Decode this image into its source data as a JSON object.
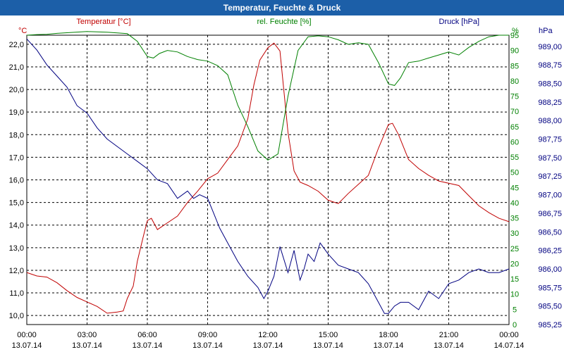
{
  "title": "Temperatur, Feuchte & Druck",
  "colors": {
    "title_bar": "#1c5fa8",
    "temperature": "#c00000",
    "humidity": "#008000",
    "pressure": "#000080"
  },
  "chart_data": {
    "type": "line",
    "title": "Temperatur, Feuchte & Druck",
    "grid": true,
    "legend": "top, above plot per axis",
    "x_ticks": [
      {
        "time": "00:00",
        "date": "13.07.14"
      },
      {
        "time": "03:00",
        "date": "13.07.14"
      },
      {
        "time": "06:00",
        "date": "13.07.14"
      },
      {
        "time": "09:00",
        "date": "13.07.14"
      },
      {
        "time": "12:00",
        "date": "13.07.14"
      },
      {
        "time": "15:00",
        "date": "13.07.14"
      },
      {
        "time": "18:00",
        "date": "13.07.14"
      },
      {
        "time": "21:00",
        "date": "13.07.14"
      },
      {
        "time": "00:00",
        "date": "14.07.14"
      }
    ],
    "x_range_hours": [
      0,
      24
    ],
    "axes": {
      "temperature": {
        "unit": "°C",
        "label": "Temperatur [°C]",
        "ylim": [
          9.6,
          22.4
        ],
        "ticks": [
          "10,0",
          "11,0",
          "12,0",
          "13,0",
          "14,0",
          "15,0",
          "16,0",
          "17,0",
          "18,0",
          "19,0",
          "20,0",
          "21,0",
          "22,0"
        ]
      },
      "humidity": {
        "unit": "%",
        "label": "rel. Feuchte [%]",
        "ylim": [
          0,
          95
        ],
        "ticks": [
          "0",
          "5",
          "10",
          "15",
          "20",
          "25",
          "30",
          "35",
          "40",
          "45",
          "50",
          "55",
          "60",
          "65",
          "70",
          "75",
          "80",
          "85",
          "90",
          "95"
        ]
      },
      "pressure": {
        "unit": "hPa",
        "label": "Druck [hPa]",
        "ylim": [
          985.25,
          989.15
        ],
        "ticks": [
          "985,25",
          "985,50",
          "985,75",
          "986,00",
          "986,25",
          "986,50",
          "986,75",
          "987,00",
          "987,25",
          "987,50",
          "987,75",
          "988,00",
          "988,25",
          "988,50",
          "988,75",
          "989,00"
        ]
      }
    },
    "series": [
      {
        "name": "Temperatur [°C]",
        "axis": "temperature",
        "x_hours": [
          0,
          0.5,
          1,
          1.5,
          2,
          2.5,
          3,
          3.5,
          4,
          4.5,
          4.8,
          5,
          5.3,
          5.5,
          5.8,
          6,
          6.2,
          6.5,
          7,
          7.5,
          8,
          8.5,
          9,
          9.5,
          10,
          10.5,
          11,
          11.3,
          11.6,
          12,
          12.3,
          12.6,
          13,
          13.3,
          13.6,
          14,
          14.5,
          15,
          15.5,
          16,
          16.5,
          17,
          17.5,
          18,
          18.2,
          18.5,
          19,
          19.5,
          20,
          20.5,
          21,
          21.5,
          22,
          22.5,
          23,
          23.5,
          24
        ],
        "values": [
          11.9,
          11.75,
          11.7,
          11.45,
          11.1,
          10.8,
          10.6,
          10.4,
          10.1,
          10.15,
          10.2,
          10.75,
          11.3,
          12.4,
          13.5,
          14.2,
          14.3,
          13.8,
          14.1,
          14.4,
          15.0,
          15.5,
          16.05,
          16.3,
          16.9,
          17.5,
          18.7,
          20.2,
          21.3,
          21.85,
          22.05,
          21.7,
          18.1,
          16.4,
          15.9,
          15.75,
          15.5,
          15.1,
          14.95,
          15.4,
          15.8,
          16.2,
          17.4,
          18.45,
          18.5,
          18.0,
          16.9,
          16.5,
          16.2,
          15.95,
          15.85,
          15.75,
          15.3,
          14.85,
          14.55,
          14.3,
          14.15
        ]
      },
      {
        "name": "rel. Feuchte [%]",
        "axis": "humidity",
        "x_hours": [
          0,
          0.5,
          1,
          1.5,
          2,
          3,
          4,
          5,
          5.5,
          6,
          6.3,
          6.6,
          7,
          7.5,
          8,
          8.5,
          9,
          9.5,
          10,
          10.5,
          11,
          11.5,
          12,
          12.5,
          13,
          13.5,
          14,
          14.5,
          15,
          15.5,
          16,
          16.5,
          17,
          17.5,
          18,
          18.3,
          18.6,
          19,
          19.5,
          20,
          20.5,
          21,
          21.5,
          22,
          22.5,
          23,
          23.5,
          24
        ],
        "values": [
          95,
          95.2,
          95.3,
          95.6,
          95.8,
          96.2,
          96.0,
          95.5,
          93,
          88,
          87.5,
          89,
          90,
          89.5,
          88,
          87,
          86.5,
          85,
          82,
          72,
          65,
          57,
          54,
          56,
          75,
          90,
          94.5,
          94.8,
          94.5,
          93.5,
          92,
          92.5,
          92,
          86,
          79,
          78.5,
          81,
          86,
          86.5,
          87.5,
          88.5,
          89.5,
          88.5,
          91,
          93,
          94.5,
          95,
          95
        ]
      },
      {
        "name": "Druck [hPa]",
        "axis": "pressure",
        "x_hours": [
          0,
          0.5,
          1,
          1.5,
          2,
          2.5,
          3,
          3.5,
          4,
          4.5,
          5,
          5.5,
          6,
          6.5,
          7,
          7.5,
          8,
          8.3,
          8.6,
          9,
          9.3,
          9.6,
          10,
          10.5,
          11,
          11.5,
          11.8,
          12,
          12.3,
          12.6,
          13,
          13.3,
          13.6,
          13.8,
          14,
          14.3,
          14.6,
          15,
          15.5,
          16,
          16.5,
          17,
          17.5,
          17.8,
          18,
          18.3,
          18.6,
          19,
          19.5,
          20,
          20.5,
          21,
          21.5,
          22,
          22.5,
          23,
          23.5,
          24
        ],
        "values": [
          989.1,
          988.95,
          988.75,
          988.6,
          988.45,
          988.2,
          988.1,
          987.9,
          987.75,
          987.65,
          987.55,
          987.45,
          987.35,
          987.2,
          987.15,
          986.95,
          987.05,
          986.95,
          987.0,
          986.95,
          986.75,
          986.55,
          986.35,
          986.1,
          985.9,
          985.75,
          985.6,
          985.7,
          985.9,
          986.3,
          985.95,
          986.25,
          985.85,
          986.0,
          986.2,
          986.1,
          986.35,
          986.2,
          986.05,
          986.0,
          985.95,
          985.8,
          985.55,
          985.4,
          985.4,
          985.5,
          985.55,
          985.55,
          985.45,
          985.7,
          985.6,
          985.8,
          985.85,
          985.95,
          986.0,
          985.95,
          985.95,
          986.0
        ]
      }
    ]
  }
}
